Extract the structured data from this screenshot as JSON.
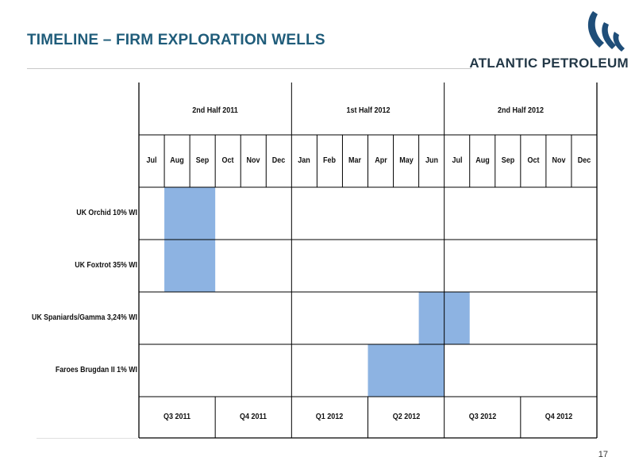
{
  "slide": {
    "title": "TIMELINE – FIRM EXPLORATION WELLS",
    "company": "ATLANTIC PETROLEUM",
    "page_number": "17",
    "colors": {
      "title": "#1f5c7a",
      "bar": "#8db3e2",
      "grid": "#000000",
      "logo": "#1f4e79"
    },
    "logo_icon": "atlantic-petroleum-wave-mark"
  },
  "timeline": {
    "halves": [
      "2nd Half 2011",
      "1st Half 2012",
      "2nd Half 2012"
    ],
    "months": [
      "Jul",
      "Aug",
      "Sep",
      "Oct",
      "Nov",
      "Dec",
      "Jan",
      "Feb",
      "Mar",
      "Apr",
      "May",
      "Jun",
      "Jul",
      "Aug",
      "Sep",
      "Oct",
      "Nov",
      "Dec"
    ],
    "quarters": [
      "Q3 2011",
      "Q4 2011",
      "Q1 2012",
      "Q2 2012",
      "Q3 2012",
      "Q4 2012"
    ],
    "wells": [
      {
        "label": "UK Orchid 10% WI",
        "start_month": 1,
        "end_month": 2
      },
      {
        "label": "UK Foxtrot 35% WI",
        "start_month": 1,
        "end_month": 2
      },
      {
        "label": "UK Spaniards/Gamma 3,24% WI",
        "start_month": 11,
        "end_month": 12
      },
      {
        "label": "Faroes Brugdan II 1% WI",
        "start_month": 9,
        "end_month": 11
      }
    ]
  }
}
